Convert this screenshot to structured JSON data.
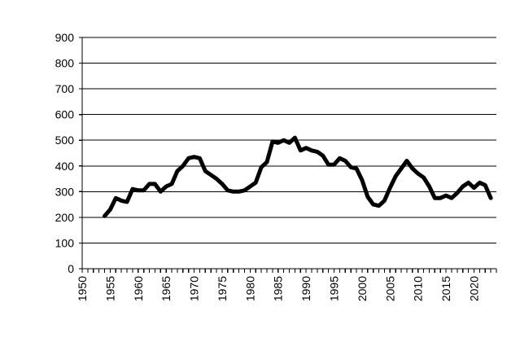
{
  "chart_data": {
    "type": "line",
    "title": "",
    "xlabel": "",
    "ylabel": "",
    "xlim": [
      1950,
      2024
    ],
    "ylim": [
      0,
      900
    ],
    "grid": true,
    "legend": "none",
    "y_ticks": [
      0,
      100,
      200,
      300,
      400,
      500,
      600,
      700,
      800,
      900
    ],
    "x_ticks": [
      1950,
      1955,
      1960,
      1965,
      1970,
      1975,
      1980,
      1985,
      1990,
      1995,
      2000,
      2005,
      2010,
      2015,
      2020
    ],
    "colors": {
      "line": "#000000",
      "grid": "#000000",
      "background": "#ffffff"
    },
    "series": [
      {
        "x": [
          1954,
          1955,
          1956,
          1957,
          1958,
          1959,
          1960,
          1961,
          1962,
          1963,
          1964,
          1965,
          1966,
          1967,
          1968,
          1969,
          1970,
          1971,
          1972,
          1973,
          1974,
          1975,
          1976,
          1977,
          1978,
          1979,
          1980,
          1981,
          1982,
          1983,
          1984,
          1985,
          1986,
          1987,
          1988,
          1989,
          1990,
          1991,
          1992,
          1993,
          1994,
          1995,
          1996,
          1997,
          1998,
          1999,
          2000,
          2001,
          2002,
          2003,
          2004,
          2005,
          2006,
          2007,
          2008,
          2009,
          2010,
          2011,
          2012,
          2013,
          2014,
          2015,
          2016,
          2017,
          2018,
          2019,
          2020,
          2021,
          2022,
          2023
        ],
        "values": [
          205,
          230,
          275,
          265,
          260,
          310,
          305,
          305,
          330,
          330,
          300,
          320,
          330,
          380,
          400,
          430,
          435,
          430,
          380,
          365,
          350,
          330,
          305,
          300,
          300,
          305,
          320,
          335,
          395,
          415,
          495,
          490,
          500,
          490,
          510,
          460,
          470,
          460,
          455,
          440,
          405,
          405,
          430,
          420,
          395,
          390,
          345,
          280,
          250,
          245,
          265,
          315,
          360,
          390,
          420,
          390,
          370,
          355,
          320,
          275,
          275,
          285,
          275,
          295,
          320,
          335,
          315,
          335,
          325,
          275
        ]
      }
    ]
  }
}
